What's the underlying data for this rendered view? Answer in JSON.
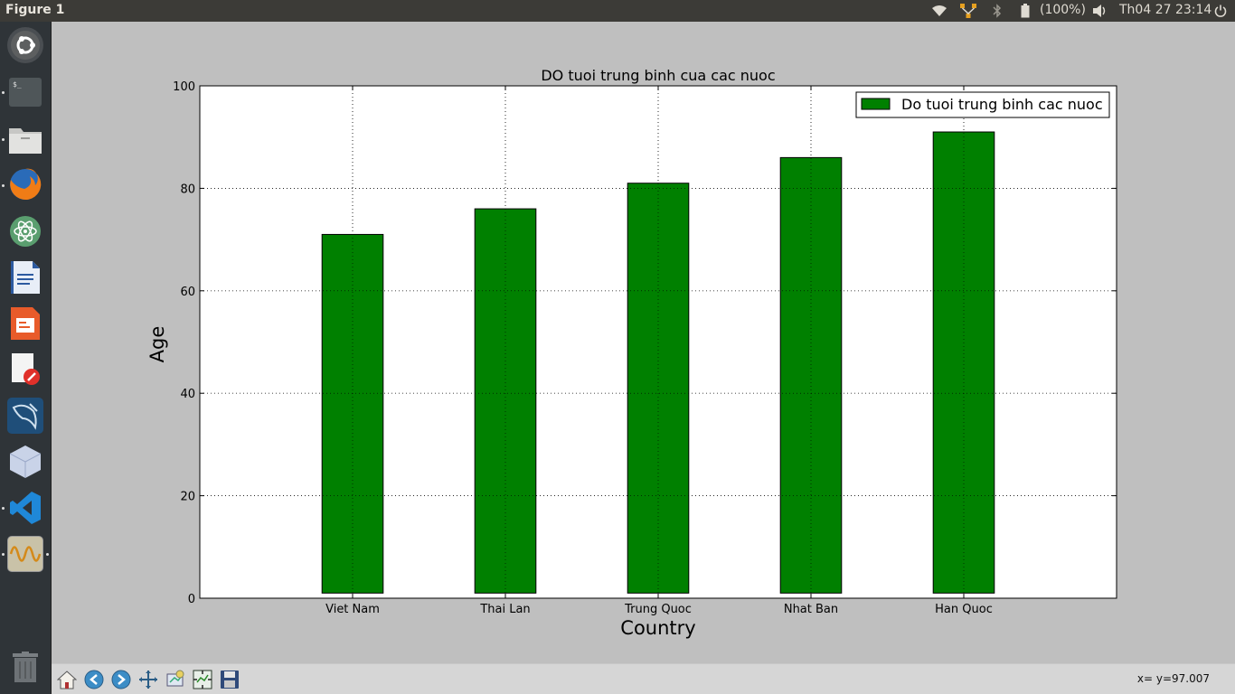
{
  "window": {
    "title": "Figure 1"
  },
  "panel": {
    "battery": "(100%)",
    "clock": "Th04 27 23:14",
    "icons": [
      "wifi-icon",
      "network-icon",
      "bluetooth-icon",
      "battery-icon",
      "volume-icon",
      "power-icon"
    ]
  },
  "launcher": {
    "items": [
      "ubuntu-dash-icon",
      "terminal-icon",
      "files-icon",
      "firefox-icon",
      "atom-icon",
      "writer-icon",
      "impress-icon",
      "editor-icon",
      "mysql-workbench-icon",
      "virtualbox-icon",
      "vscode-icon",
      "matplotlib-figure-icon",
      "trash-icon"
    ]
  },
  "chart_data": {
    "type": "bar",
    "title": "DO tuoi trung binh cua cac nuoc",
    "xlabel": "Country",
    "ylabel": "Age",
    "categories": [
      "Viet Nam",
      "Thai Lan",
      "Trung Quoc",
      "Nhat Ban",
      "Han Quoc"
    ],
    "series": [
      {
        "name": "Do tuoi trung binh cac nuoc",
        "values": [
          70,
          75,
          80,
          85,
          90
        ],
        "color": "#008000"
      }
    ],
    "bar_bottom": 1,
    "ylim": [
      0,
      100
    ],
    "yticks": [
      "0",
      "20",
      "40",
      "60",
      "80",
      "100"
    ],
    "xlim": [
      -1,
      5
    ],
    "grid": true,
    "legend": "top-right"
  },
  "toolbar": {
    "buttons": [
      "home-icon",
      "back-icon",
      "forward-icon",
      "pan-icon",
      "zoom-icon",
      "subplots-icon",
      "save-icon"
    ],
    "coords": "x= y=97.007"
  }
}
